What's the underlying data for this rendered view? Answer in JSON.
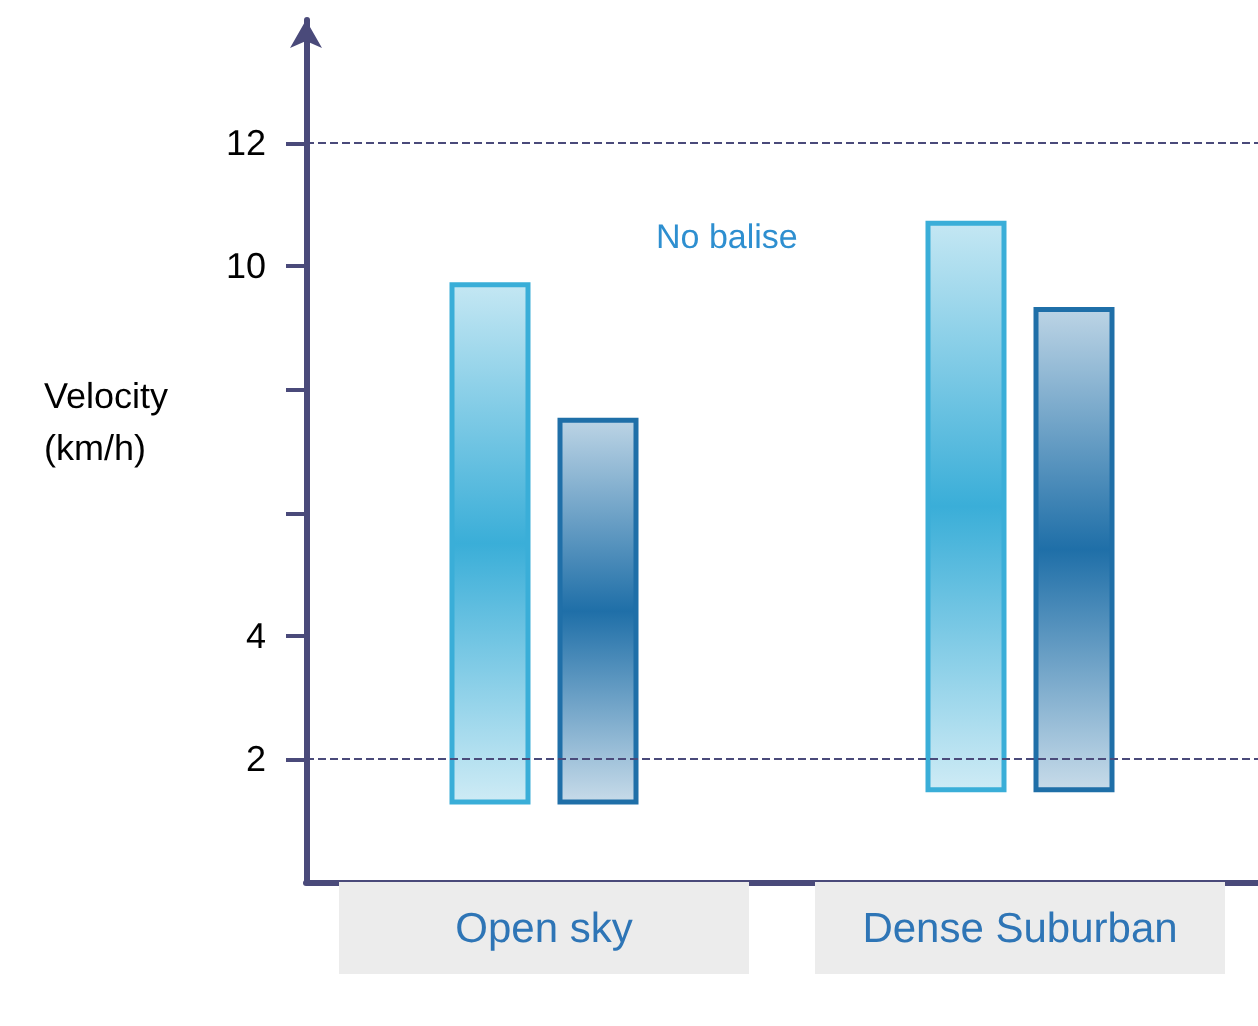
{
  "chart_data": {
    "type": "bar",
    "ylabel": "Velocity\n(km/h)",
    "categories": [
      "Open sky",
      "Dense Suburban"
    ],
    "series": [
      {
        "color": "#3aaed8",
        "values": [
          8.4,
          9.2
        ],
        "base": [
          1.3,
          1.5
        ]
      },
      {
        "color": "#1f6fa8",
        "values": [
          6.2,
          7.8
        ],
        "base": [
          1.3,
          1.5
        ]
      }
    ],
    "ylim": [
      0,
      14
    ],
    "yticks": [
      2,
      4,
      {
        "value": 6,
        "label": null
      },
      {
        "value": 8,
        "label": null
      },
      10,
      12
    ],
    "ref_lines": [
      {
        "axis": "y",
        "value": 2,
        "label": null,
        "color": "#4a4a7a",
        "line_style": "dashed"
      },
      {
        "axis": "y",
        "value": 12,
        "label": null,
        "color": "#4a4a7a",
        "line_style": "dashed"
      }
    ],
    "annotations": [
      "No balise"
    ],
    "grid": false
  }
}
